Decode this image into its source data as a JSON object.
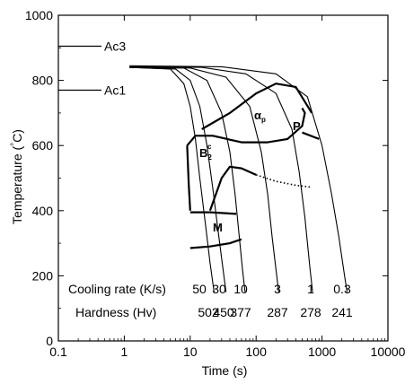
{
  "chart_data": {
    "type": "line",
    "chart_kind": "CCT diagram",
    "xlabel": "Time (s)",
    "ylabel_text": "Temperature (",
    "ylabel_unit": "°C",
    "ylabel_close": ")",
    "x_scale": "log",
    "xlim": [
      0.1,
      10000
    ],
    "ylim": [
      0,
      1000
    ],
    "grid": false,
    "x_ticks": [
      0.1,
      1,
      10,
      100,
      1000,
      10000
    ],
    "x_tick_labels": [
      "0.1",
      "1",
      "10",
      "100",
      "1000",
      "10000"
    ],
    "y_ticks": [
      0,
      200,
      400,
      600,
      800,
      1000
    ],
    "y_tick_labels": [
      "0",
      "200",
      "400",
      "600",
      "800",
      "1000"
    ],
    "reference_lines": [
      {
        "label": "Ac3",
        "y": 905
      },
      {
        "label": "Ac1",
        "y": 770
      }
    ],
    "cooling_rate_title": "Cooling rate (K/s)",
    "hardness_title": "Hardness (Hv)",
    "cooling_curves": [
      {
        "rate": "50",
        "hardness": "502",
        "points": [
          [
            1.2,
            840
          ],
          [
            5,
            835
          ],
          [
            8,
            790
          ],
          [
            10,
            720
          ],
          [
            12,
            620
          ],
          [
            14,
            500
          ],
          [
            17,
            360
          ],
          [
            20,
            240
          ],
          [
            23,
            150
          ]
        ]
      },
      {
        "rate": "30",
        "hardness": "450",
        "points": [
          [
            1.2,
            840
          ],
          [
            6,
            835
          ],
          [
            10,
            800
          ],
          [
            14,
            720
          ],
          [
            18,
            600
          ],
          [
            22,
            470
          ],
          [
            26,
            350
          ],
          [
            31,
            230
          ],
          [
            35,
            150
          ]
        ]
      },
      {
        "rate": "10",
        "hardness": "377",
        "points": [
          [
            1.2,
            840
          ],
          [
            8,
            838
          ],
          [
            18,
            800
          ],
          [
            30,
            700
          ],
          [
            40,
            580
          ],
          [
            48,
            450
          ],
          [
            55,
            330
          ],
          [
            62,
            220
          ],
          [
            68,
            150
          ]
        ]
      },
      {
        "rate": "3",
        "hardness": "287",
        "points": [
          [
            1.2,
            840
          ],
          [
            10,
            838
          ],
          [
            35,
            810
          ],
          [
            80,
            720
          ],
          [
            120,
            580
          ],
          [
            150,
            450
          ],
          [
            175,
            320
          ],
          [
            200,
            220
          ],
          [
            220,
            150
          ]
        ]
      },
      {
        "rate": "1",
        "hardness": "278",
        "points": [
          [
            1.2,
            842
          ],
          [
            15,
            840
          ],
          [
            70,
            820
          ],
          [
            200,
            760
          ],
          [
            350,
            650
          ],
          [
            450,
            520
          ],
          [
            550,
            380
          ],
          [
            650,
            230
          ],
          [
            720,
            150
          ]
        ]
      },
      {
        "rate": "0.3",
        "hardness": "241",
        "points": [
          [
            1.2,
            845
          ],
          [
            30,
            842
          ],
          [
            200,
            820
          ],
          [
            600,
            750
          ],
          [
            1000,
            600
          ],
          [
            1400,
            450
          ],
          [
            1800,
            320
          ],
          [
            2200,
            200
          ],
          [
            2400,
            150
          ]
        ]
      }
    ],
    "regions": [
      {
        "label": "α",
        "subscript": "p"
      },
      {
        "label": "P"
      },
      {
        "label": "B",
        "subscript": "2",
        "superscript": "c"
      },
      {
        "label": "M"
      }
    ],
    "transformation_lines": {
      "ferrite_start": [
        [
          15,
          650
        ],
        [
          40,
          700
        ],
        [
          100,
          760
        ],
        [
          200,
          790
        ],
        [
          400,
          780
        ],
        [
          700,
          700
        ]
      ],
      "ferrite_finish": [
        [
          9,
          600
        ],
        [
          12,
          630
        ],
        [
          22,
          630
        ],
        [
          60,
          610
        ],
        [
          150,
          610
        ],
        [
          300,
          620
        ],
        [
          500,
          660
        ],
        [
          550,
          700
        ],
        [
          500,
          715
        ]
      ],
      "pearlite_finish": [
        [
          500,
          640
        ],
        [
          900,
          620
        ]
      ],
      "bainite_left": [
        [
          9,
          600
        ],
        [
          9.5,
          480
        ],
        [
          10,
          400
        ]
      ],
      "bainite_start": [
        [
          20,
          400
        ],
        [
          30,
          500
        ],
        [
          40,
          535
        ],
        [
          60,
          530
        ],
        [
          100,
          510
        ]
      ],
      "bainite_finish_dotted": [
        [
          100,
          510
        ],
        [
          200,
          490
        ],
        [
          400,
          478
        ],
        [
          700,
          472
        ]
      ],
      "martensite_start": [
        [
          10,
          395
        ],
        [
          20,
          395
        ],
        [
          50,
          390
        ]
      ],
      "martensite_finish": [
        [
          10,
          285
        ],
        [
          20,
          290
        ],
        [
          40,
          300
        ],
        [
          60,
          312
        ]
      ]
    }
  }
}
